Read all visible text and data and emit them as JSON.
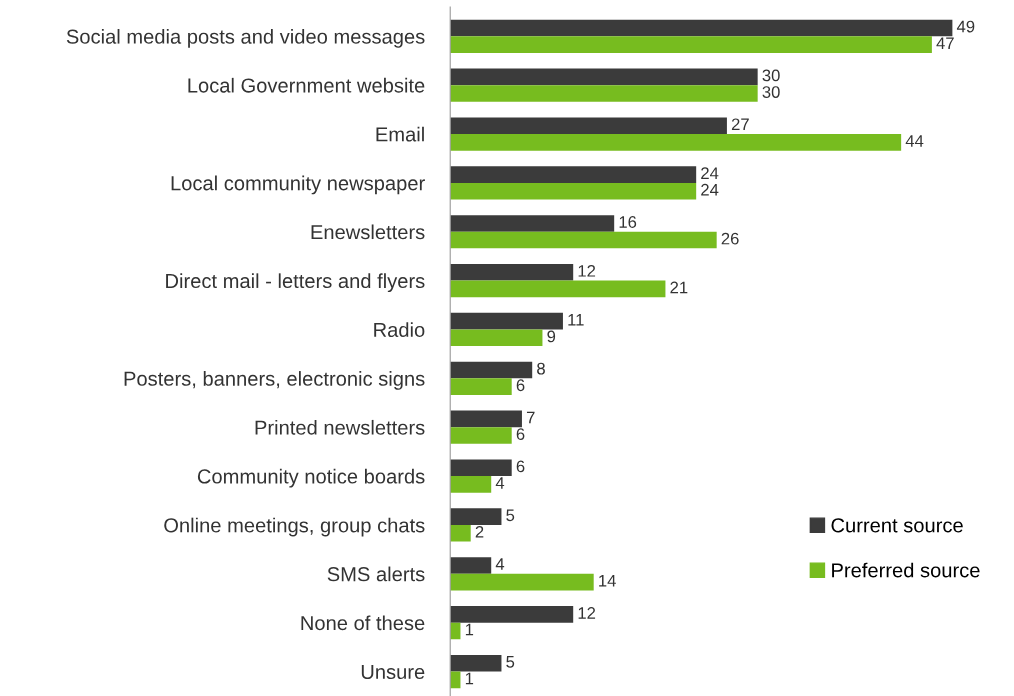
{
  "chart_data": {
    "type": "bar",
    "orientation": "horizontal",
    "categories": [
      "Social media posts and video messages",
      "Local Government website",
      "Email",
      "Local community newspaper",
      "Enewsletters",
      "Direct mail - letters and flyers",
      "Radio",
      "Posters, banners, electronic signs",
      "Printed newsletters",
      "Community notice boards",
      "Online meetings, group chats",
      "SMS alerts",
      "None of these",
      "Unsure"
    ],
    "series": [
      {
        "name": "Current source",
        "color": "#3b3b3b",
        "values": [
          49,
          30,
          27,
          24,
          16,
          12,
          11,
          8,
          7,
          6,
          5,
          4,
          12,
          5
        ]
      },
      {
        "name": "Preferred source",
        "color": "#77bc1f",
        "values": [
          47,
          30,
          44,
          24,
          26,
          21,
          9,
          6,
          6,
          4,
          2,
          14,
          1,
          1
        ]
      }
    ],
    "data_labels": true,
    "legend": "bottom right",
    "grid": false
  }
}
